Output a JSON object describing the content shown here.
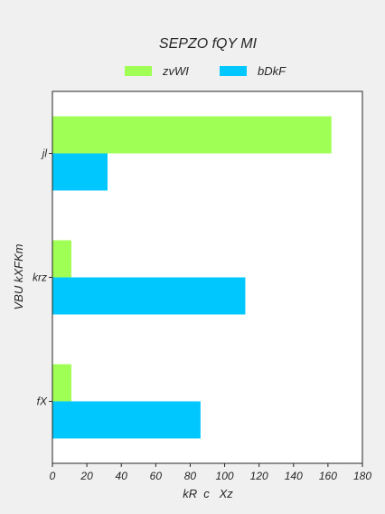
{
  "chart_data": {
    "type": "bar",
    "orientation": "horizontal",
    "title": "SEPZO fQY MI",
    "xlabel": "kR  c   Xz",
    "ylabel": "VBU kXFKm",
    "categories": [
      "jl",
      "krz",
      "fX"
    ],
    "series": [
      {
        "name": "zvWI",
        "color": "#a0ff55",
        "values": [
          162,
          11,
          11
        ]
      },
      {
        "name": "bDkF",
        "color": "#00c8ff",
        "values": [
          32,
          112,
          86
        ]
      }
    ],
    "xlim": [
      0,
      180
    ],
    "xticks": [
      0,
      20,
      40,
      60,
      80,
      100,
      120,
      140,
      160,
      180
    ],
    "grid": false,
    "legend": "top-center"
  }
}
